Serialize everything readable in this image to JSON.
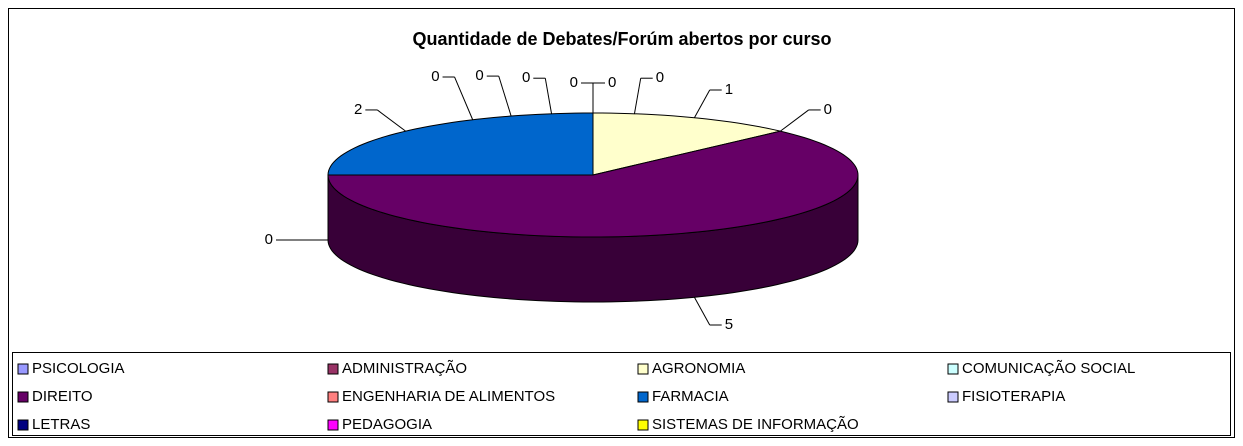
{
  "chart_data": {
    "type": "pie",
    "title": "Quantidade de Debates/Forúm abertos por curso",
    "categories": [
      "PSICOLOGIA",
      "ADMINISTRAÇÃO",
      "AGRONOMIA",
      "COMUNICAÇÃO SOCIAL",
      "DIREITO",
      "ENGENHARIA DE ALIMENTOS",
      "FARMACIA",
      "FISIOTERAPIA",
      "LETRAS",
      "PEDAGOGIA",
      "SISTEMAS DE INFORMAÇÃO"
    ],
    "values": [
      0,
      0,
      1,
      0,
      5,
      0,
      2,
      0,
      0,
      0,
      0
    ],
    "colors": [
      "#9999ff",
      "#993366",
      "#ffffcc",
      "#ccffff",
      "#660066",
      "#ff8080",
      "#0066cc",
      "#ccccff",
      "#000080",
      "#ff00ff",
      "#ffff00"
    ],
    "legend": "bottom"
  }
}
